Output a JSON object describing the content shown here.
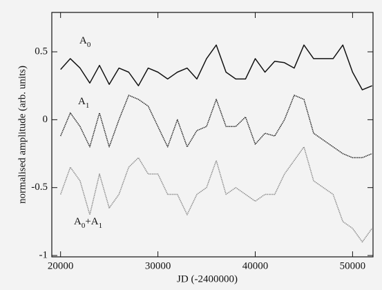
{
  "chart_data": {
    "type": "line",
    "x_label": "JD (-2400000)",
    "y_label": "normalised amplitude (arb. units)",
    "x": [
      20000,
      21000,
      22000,
      23000,
      24000,
      25000,
      26000,
      27000,
      28000,
      29000,
      30000,
      31000,
      32000,
      33000,
      34000,
      35000,
      36000,
      37000,
      38000,
      39000,
      40000,
      41000,
      42000,
      43000,
      44000,
      45000,
      46000,
      47000,
      48000,
      49000,
      50000,
      51000,
      52000
    ],
    "series": [
      {
        "label_parts": [
          "A",
          "0"
        ],
        "color": "#111111",
        "dash": false,
        "values": [
          0.37,
          0.45,
          0.38,
          0.27,
          0.4,
          0.26,
          0.38,
          0.35,
          0.25,
          0.38,
          0.35,
          0.3,
          0.35,
          0.38,
          0.3,
          0.45,
          0.55,
          0.35,
          0.3,
          0.3,
          0.45,
          0.35,
          0.43,
          0.42,
          0.38,
          0.55,
          0.45,
          0.45,
          0.45,
          0.55,
          0.35,
          0.22,
          0.25
        ]
      },
      {
        "label_parts": [
          "A",
          "1"
        ],
        "color": "#222222",
        "dash": true,
        "values": [
          -0.12,
          0.05,
          -0.05,
          -0.2,
          0.05,
          -0.2,
          0.0,
          0.18,
          0.15,
          0.1,
          -0.05,
          -0.2,
          0.0,
          -0.2,
          -0.08,
          -0.05,
          0.15,
          -0.05,
          -0.05,
          0.02,
          -0.18,
          -0.1,
          -0.12,
          0.0,
          0.18,
          0.15,
          -0.1,
          -0.15,
          -0.2,
          -0.25,
          -0.28,
          -0.28,
          -0.25
        ]
      },
      {
        "label_parts": [
          "A",
          "0",
          "+A",
          "1"
        ],
        "color": "#8a8a8a",
        "dash": true,
        "values": [
          -0.55,
          -0.35,
          -0.45,
          -0.7,
          -0.4,
          -0.65,
          -0.55,
          -0.35,
          -0.28,
          -0.4,
          -0.4,
          -0.55,
          -0.55,
          -0.7,
          -0.55,
          -0.5,
          -0.3,
          -0.55,
          -0.5,
          -0.55,
          -0.6,
          -0.55,
          -0.55,
          -0.4,
          -0.3,
          -0.2,
          -0.45,
          -0.5,
          -0.55,
          -0.75,
          -0.8,
          -0.9,
          -0.8
        ]
      }
    ],
    "xlim": [
      19100,
      52100
    ],
    "ylim": [
      -1.01,
      0.79
    ],
    "xticks": [
      20000,
      30000,
      40000,
      50000
    ],
    "yticks": [
      -1,
      -0.5,
      0,
      0.5
    ]
  }
}
